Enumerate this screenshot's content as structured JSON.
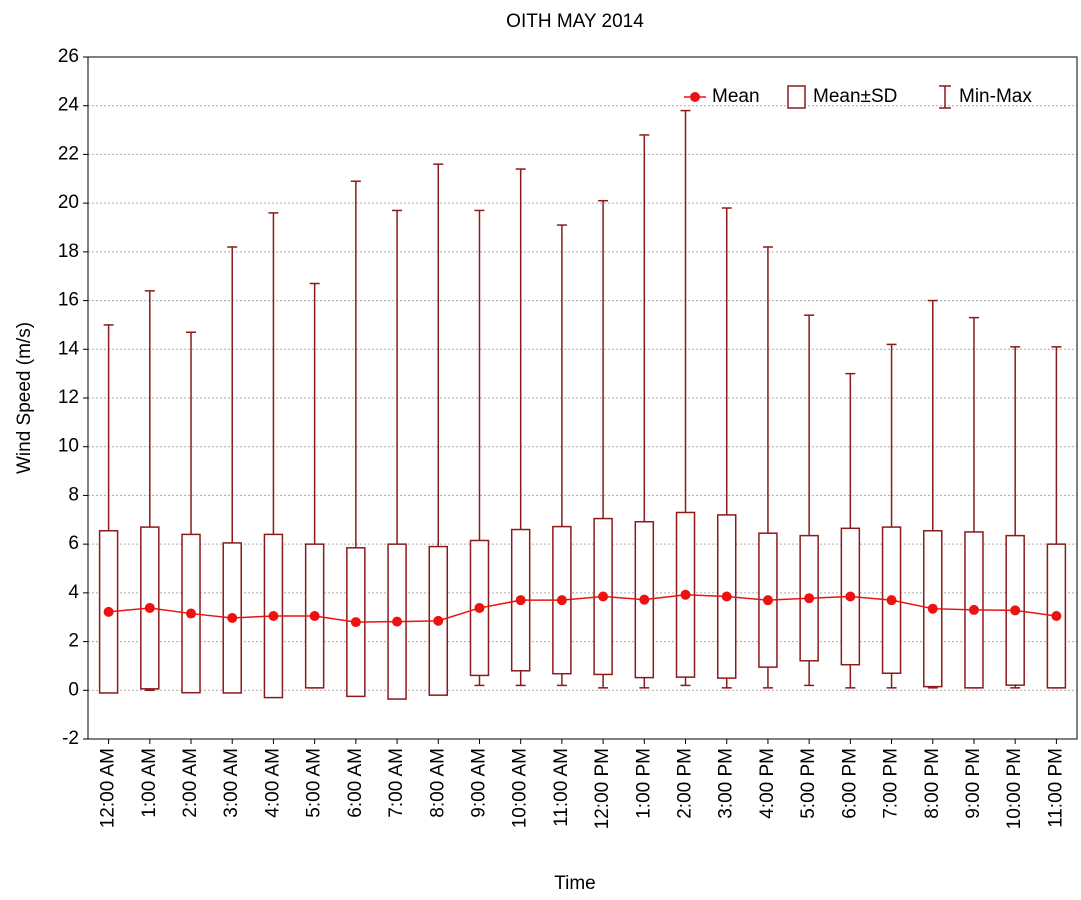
{
  "chart_data": {
    "type": "box",
    "title": "OITH MAY 2014",
    "x_label": "Time",
    "y_label": "Wind Speed (m/s)",
    "categories": [
      "12:00 AM",
      "1:00 AM",
      "2:00 AM",
      "3:00 AM",
      "4:00 AM",
      "5:00 AM",
      "6:00 AM",
      "7:00 AM",
      "8:00 AM",
      "9:00 AM",
      "10:00 AM",
      "11:00 AM",
      "12:00 PM",
      "1:00 PM",
      "2:00 PM",
      "3:00 PM",
      "4:00 PM",
      "5:00 PM",
      "6:00 PM",
      "7:00 PM",
      "8:00 PM",
      "9:00 PM",
      "10:00 PM",
      "11:00 PM"
    ],
    "series": [
      {
        "name": "Mean",
        "color": "#ee1111",
        "values": [
          3.22,
          3.38,
          3.15,
          2.97,
          3.05,
          3.05,
          2.8,
          2.82,
          2.85,
          3.38,
          3.7,
          3.7,
          3.85,
          3.72,
          3.92,
          3.85,
          3.7,
          3.78,
          3.85,
          3.7,
          3.35,
          3.3,
          3.28,
          3.05
        ]
      },
      {
        "name": "Mean±SD",
        "color": "#8b1a1a",
        "values": [
          3.33,
          3.32,
          3.25,
          3.08,
          3.35,
          2.95,
          3.05,
          3.18,
          3.05,
          2.77,
          2.9,
          3.02,
          3.2,
          3.2,
          3.38,
          3.35,
          2.75,
          2.57,
          2.8,
          3.0,
          3.2,
          3.2,
          3.07,
          2.95
        ]
      },
      {
        "name": "Min-Max",
        "color": "#8b1a1a",
        "min": [
          0,
          0,
          0,
          0,
          0,
          0.1,
          0,
          0,
          0,
          0.2,
          0.2,
          0.2,
          0.1,
          0.1,
          0.2,
          0.1,
          0.1,
          0.2,
          0.1,
          0.1,
          0.1,
          0.1,
          0.1,
          0.1
        ],
        "max": [
          15.0,
          16.4,
          14.7,
          18.2,
          19.6,
          16.7,
          20.9,
          19.7,
          21.6,
          19.7,
          21.4,
          19.1,
          20.1,
          22.8,
          23.8,
          19.8,
          18.2,
          15.4,
          13.0,
          14.2,
          16.0,
          15.3,
          14.1,
          14.1
        ]
      }
    ],
    "ylim": [
      -2,
      26
    ],
    "yticks": [
      -2,
      0,
      2,
      4,
      6,
      8,
      10,
      12,
      14,
      16,
      18,
      20,
      22,
      24,
      26
    ],
    "grid": true,
    "legend": "top-right"
  }
}
